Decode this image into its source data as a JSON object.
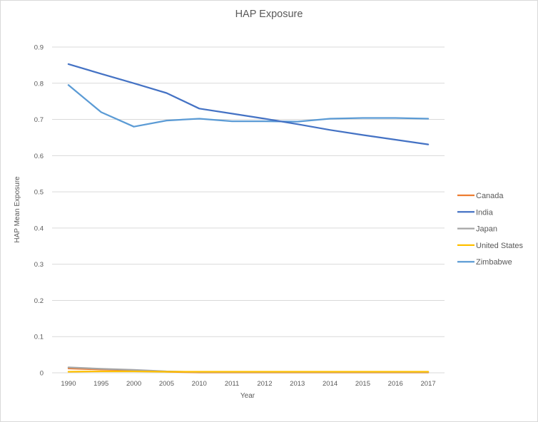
{
  "chart_data": {
    "type": "line",
    "title": "HAP Exposure",
    "xlabel": "Year",
    "ylabel": "HAP Mean Exposure",
    "categories": [
      "1990",
      "1995",
      "2000",
      "2005",
      "2010",
      "2011",
      "2012",
      "2013",
      "2014",
      "2015",
      "2016",
      "2017"
    ],
    "ylim": [
      0,
      0.9
    ],
    "yticks": [
      "0",
      "0.1",
      "0.2",
      "0.3",
      "0.4",
      "0.5",
      "0.6",
      "0.7",
      "0.8",
      "0.9"
    ],
    "grid": true,
    "legend_position": "right",
    "series": [
      {
        "name": "Canada",
        "color": "#ed7d31",
        "values": [
          0.012,
          0.009,
          0.007,
          0.003,
          0.001,
          0.001,
          0.001,
          0.001,
          0.001,
          0.001,
          0.001,
          0.001
        ]
      },
      {
        "name": "India",
        "color": "#4472c4",
        "values": [
          0.853,
          0.826,
          0.8,
          0.773,
          0.73,
          0.716,
          0.702,
          0.687,
          0.671,
          0.657,
          0.644,
          0.631
        ]
      },
      {
        "name": "Japan",
        "color": "#a5a5a5",
        "values": [
          0.015,
          0.011,
          0.008,
          0.004,
          0.002,
          0.002,
          0.002,
          0.002,
          0.002,
          0.002,
          0.002,
          0.002
        ]
      },
      {
        "name": "United States",
        "color": "#ffc000",
        "values": [
          0.003,
          0.004,
          0.004,
          0.003,
          0.003,
          0.003,
          0.003,
          0.003,
          0.003,
          0.003,
          0.003,
          0.003
        ]
      },
      {
        "name": "Zimbabwe",
        "color": "#5b9bd5",
        "values": [
          0.795,
          0.72,
          0.68,
          0.697,
          0.702,
          0.695,
          0.695,
          0.694,
          0.702,
          0.704,
          0.704,
          0.702
        ]
      }
    ]
  }
}
